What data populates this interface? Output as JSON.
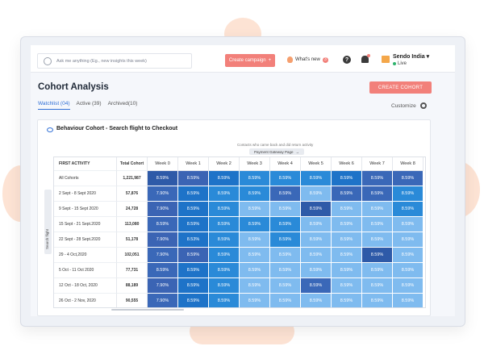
{
  "topbar": {
    "search_placeholder": "Ask me anything (Eg., new insights this week)",
    "campaign_button": "Create campaign",
    "whats_new": "What's new",
    "whats_new_count": "3",
    "help_glyph": "?",
    "org_name": "Sendo India",
    "status": "Live"
  },
  "page": {
    "title": "Cohort Analysis",
    "create_button": "CREATE COHORT",
    "tabs": [
      {
        "label": "Watchlist (04)",
        "active": true
      },
      {
        "label": "Active (39)",
        "active": false
      },
      {
        "label": "Archived(10)",
        "active": false
      }
    ],
    "customize": "Customize"
  },
  "card": {
    "title": "Behaviour Cohort - Search flight to Checkout",
    "note": "Contacts who came back and did return activity",
    "event": "Payment Gateway Page",
    "side_label": "Search flight"
  },
  "table": {
    "headers": [
      "FIRST ACTIVITY",
      "Total Cohort",
      "Week 0",
      "Week 1",
      "Week 2",
      "Week 3",
      "Week 4",
      "Week 5",
      "Week 6",
      "Week 7",
      "Week 8"
    ],
    "rows": [
      {
        "activity": "All Cohorts",
        "total": "1,221,987",
        "cells": [
          "8.59%",
          "8.59%",
          "8.59%",
          "8.59%",
          "8.59%",
          "8.59%",
          "8.59%",
          "8.59%",
          "8.59%"
        ]
      },
      {
        "activity": "2 Sept - 8 Sept 2020",
        "total": "57,876",
        "cells": [
          "7.90%",
          "8.59%",
          "8.59%",
          "8.59%",
          "8.59%",
          "8.59%",
          "8.59%",
          "8.59%",
          "8.59%"
        ]
      },
      {
        "activity": "9 Sept - 15 Sept 2020",
        "total": "24,728",
        "cells": [
          "7.90%",
          "8.59%",
          "8.59%",
          "8.59%",
          "8.59%",
          "8.59%",
          "8.59%",
          "8.59%",
          "8.59%"
        ]
      },
      {
        "activity": "15 Sept - 21 Sept.2020",
        "total": "113,080",
        "cells": [
          "8.59%",
          "8.59%",
          "8.59%",
          "8.59%",
          "8.59%",
          "8.59%",
          "8.59%",
          "8.59%",
          "8.59%"
        ]
      },
      {
        "activity": "22 Sept - 28 Sept.2020",
        "total": "51,178",
        "cells": [
          "7.90%",
          "8.53%",
          "8.59%",
          "8.59%",
          "8.59%",
          "8.59%",
          "8.59%",
          "8.59%",
          "8.59%"
        ]
      },
      {
        "activity": "29 - 4 Oct,2020",
        "total": "102,051",
        "cells": [
          "7.90%",
          "8.59%",
          "8.59%",
          "8.59%",
          "8.59%",
          "8.59%",
          "8.59%",
          "8.59%",
          "8.59%"
        ]
      },
      {
        "activity": "5 Oct - 11 Oct 2020",
        "total": "77,731",
        "cells": [
          "8.59%",
          "8.59%",
          "8.59%",
          "8.59%",
          "8.59%",
          "8.59%",
          "8.59%",
          "8.59%",
          "8.59%"
        ]
      },
      {
        "activity": "12 Oct - 18 Oct, 2020",
        "total": "88,189",
        "cells": [
          "7.90%",
          "8.59%",
          "8.59%",
          "8.59%",
          "8.59%",
          "8.59%",
          "8.59%",
          "8.59%",
          "8.59%"
        ]
      },
      {
        "activity": "26 Oct - 2 Nov, 2020",
        "total": "90,555",
        "cells": [
          "7.90%",
          "8.59%",
          "8.59%",
          "8.59%",
          "8.59%",
          "8.59%",
          "8.59%",
          "8.59%",
          "8.59%"
        ]
      }
    ],
    "shades": [
      [
        "#2e5aa8",
        "#3b64b4",
        "#1e73c8",
        "#2a8ad8",
        "#2a8ad8",
        "#2a8ad8",
        "#1e73c8",
        "#3a68b8",
        "#3a68b8"
      ],
      [
        "#3a68b8",
        "#1e73c8",
        "#2a8ad8",
        "#2a8ad8",
        "#3a68b8",
        "#7fbbef",
        "#3a68b8",
        "#3a68b8",
        "#2a8ad8"
      ],
      [
        "#3b64b4",
        "#1e73c8",
        "#2a8ad8",
        "#7fbbef",
        "#7fbbef",
        "#2e5aa8",
        "#7fbbef",
        "#7fbbef",
        "#2a8ad8"
      ],
      [
        "#3a68b8",
        "#1e73c8",
        "#2a8ad8",
        "#2a8ad8",
        "#2a8ad8",
        "#7fbbef",
        "#7fbbef",
        "#7fbbef",
        "#7fbbef"
      ],
      [
        "#3b64b4",
        "#1e73c8",
        "#2a8ad8",
        "#7fbbef",
        "#2a8ad8",
        "#7fbbef",
        "#7fbbef",
        "#7fbbef",
        "#7fbbef"
      ],
      [
        "#3a68b8",
        "#3b64b4",
        "#2a8ad8",
        "#7fbbef",
        "#7fbbef",
        "#7fbbef",
        "#7fbbef",
        "#2e5aa8",
        "#7fbbef"
      ],
      [
        "#3a68b8",
        "#1e73c8",
        "#2a8ad8",
        "#7fbbef",
        "#7fbbef",
        "#7fbbef",
        "#7fbbef",
        "#7fbbef",
        "#7fbbef"
      ],
      [
        "#3b64b4",
        "#1e73c8",
        "#2a8ad8",
        "#7fbbef",
        "#7fbbef",
        "#3a68b8",
        "#7fbbef",
        "#7fbbef",
        "#7fbbef"
      ],
      [
        "#3a68b8",
        "#1e73c8",
        "#2a8ad8",
        "#7fbbef",
        "#7fbbef",
        "#7fbbef",
        "#7fbbef",
        "#7fbbef",
        "#7fbbef"
      ]
    ]
  },
  "colors": {
    "accent": "#f2807a",
    "link": "#2f6fd6"
  }
}
